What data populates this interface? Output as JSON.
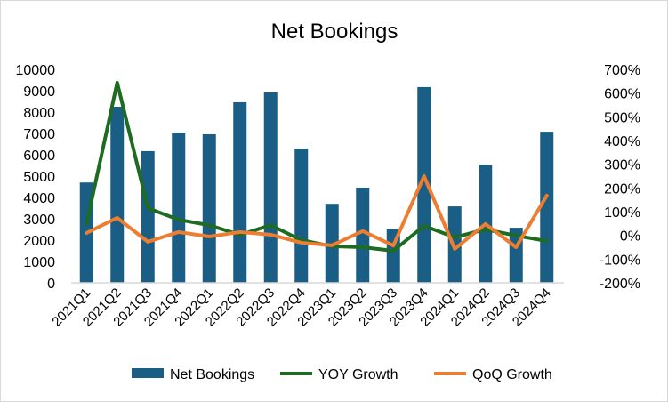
{
  "chart_data": {
    "type": "bar",
    "title": "Net Bookings",
    "categories": [
      "2021Q1",
      "2021Q2",
      "2021Q3",
      "2021Q4",
      "2022Q1",
      "2022Q2",
      "2022Q3",
      "2022Q4",
      "2023Q1",
      "2023Q2",
      "2023Q3",
      "2023Q4",
      "2024Q1",
      "2024Q2",
      "2024Q3",
      "2024Q4"
    ],
    "series": [
      {
        "name": "Net Bookings",
        "type": "bar",
        "axis": "left",
        "color": "#1b5e85",
        "values": [
          4700,
          8250,
          6170,
          7040,
          6960,
          8460,
          8920,
          6290,
          3700,
          4460,
          2540,
          9170,
          3580,
          5540,
          2580,
          7080
        ]
      },
      {
        "name": "YOY Growth",
        "type": "line",
        "axis": "right",
        "color": "#1e6b22",
        "values": [
          48,
          644,
          115,
          66,
          43,
          2,
          43,
          -20,
          -46,
          -50,
          -65,
          40,
          -8,
          25,
          -1,
          -24
        ]
      },
      {
        "name": "QoQ Growth",
        "type": "line",
        "axis": "right",
        "color": "#ed7d31",
        "values": [
          10,
          74,
          -27,
          14,
          -5,
          14,
          3,
          -31,
          -42,
          18,
          -43,
          250,
          -57,
          48,
          -50,
          168
        ]
      }
    ],
    "left_axis": {
      "min": 0,
      "max": 10000,
      "step": 1000,
      "ticks": [
        "0",
        "1000",
        "2000",
        "3000",
        "4000",
        "5000",
        "6000",
        "7000",
        "8000",
        "9000",
        "10000"
      ]
    },
    "right_axis": {
      "min": -200,
      "max": 700,
      "step": 100,
      "unit": "%",
      "ticks": [
        "-200%",
        "-100%",
        "0%",
        "100%",
        "200%",
        "300%",
        "400%",
        "500%",
        "600%",
        "700%"
      ]
    },
    "grid": false,
    "legend_position": "bottom"
  }
}
